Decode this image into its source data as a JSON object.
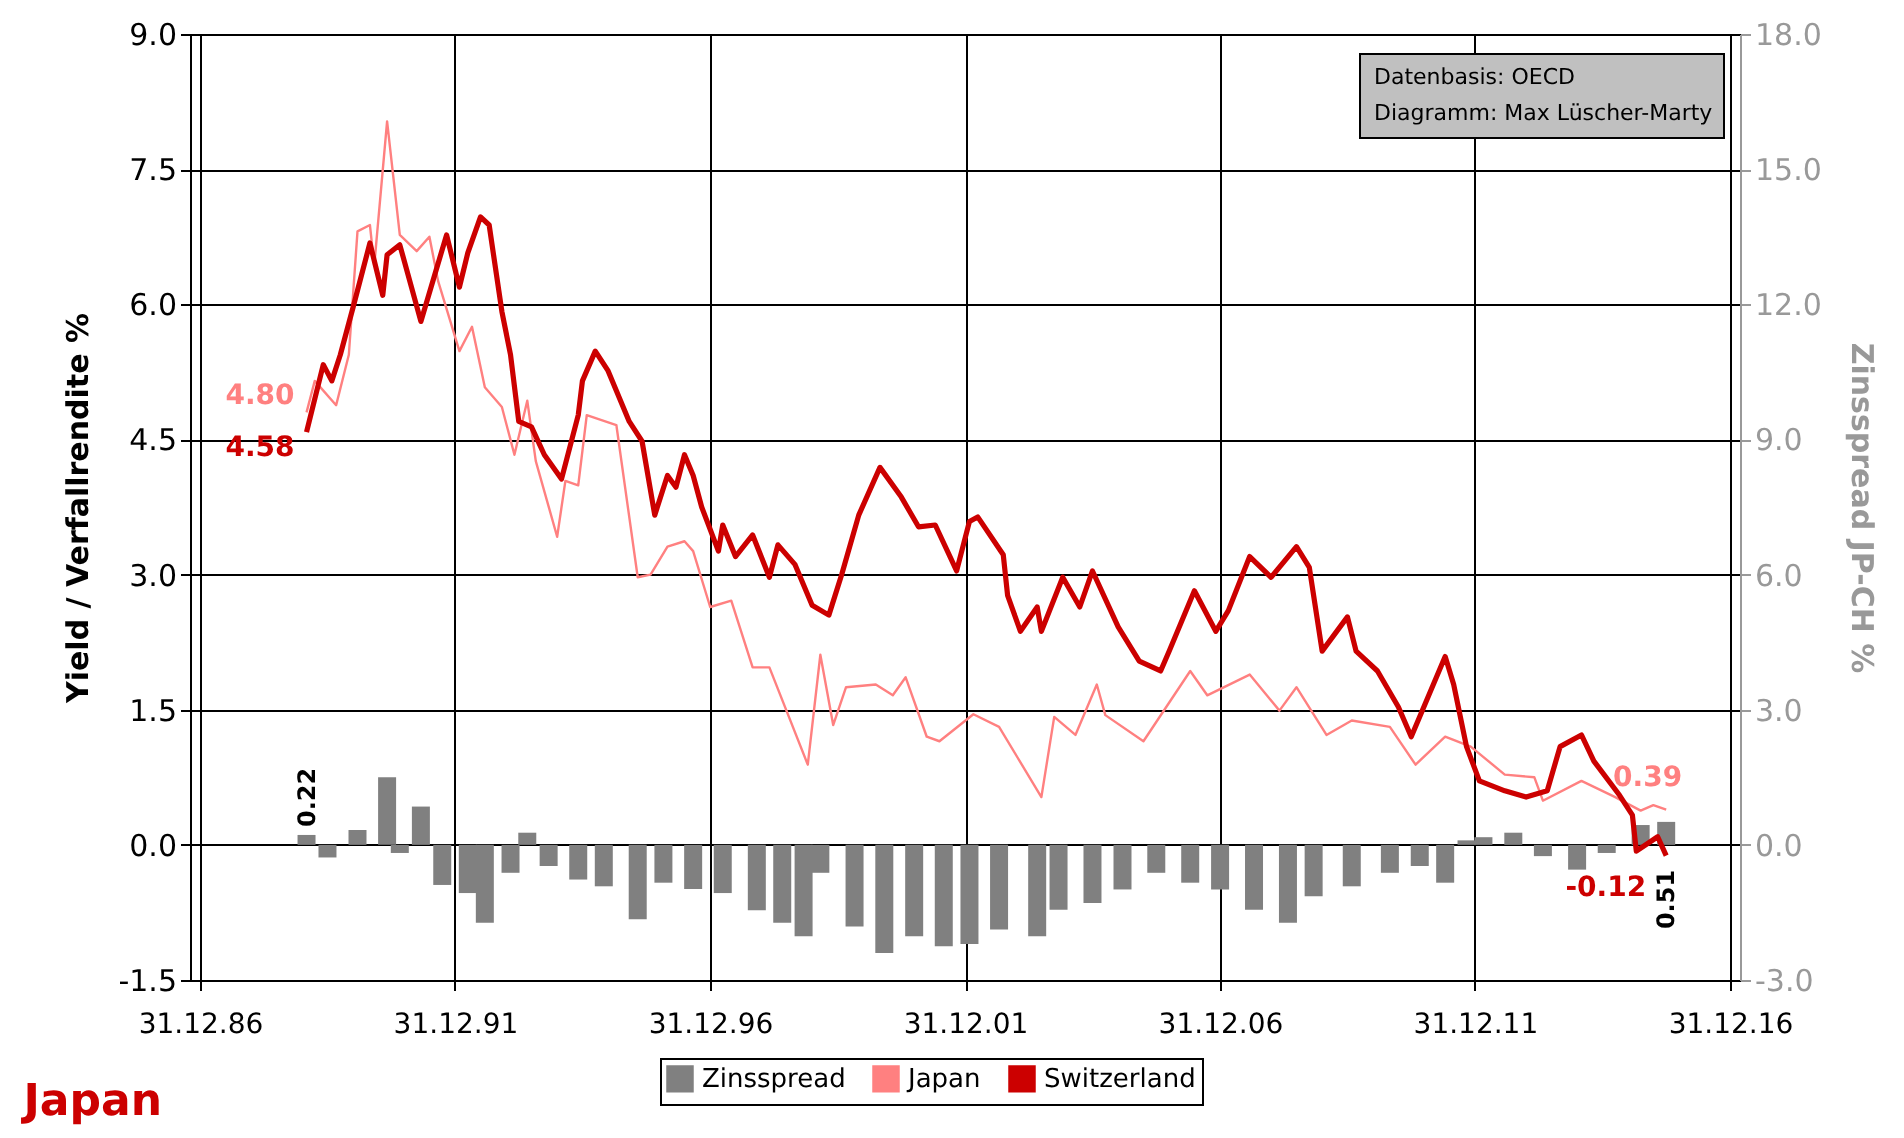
{
  "chart_data": {
    "type": "line",
    "title": "Japan",
    "ylabel": "Yield / Verfallrendite %",
    "y2label": "Zinsspread JP-CH %",
    "annotations": [
      "Datenbasis: OECD",
      "Diagramm: Max Lüscher-Marty"
    ],
    "xlim": [
      "1986-12-31",
      "2016-12-31"
    ],
    "xticks": [
      {
        "value": "1986-12-31",
        "label": "31.12.86"
      },
      {
        "value": "1991-12-31",
        "label": "31.12.91"
      },
      {
        "value": "1996-12-31",
        "label": "31.12.96"
      },
      {
        "value": "2001-12-31",
        "label": "31.12.01"
      },
      {
        "value": "2006-12-31",
        "label": "31.12.06"
      },
      {
        "value": "2011-12-31",
        "label": "31.12.11"
      },
      {
        "value": "2016-12-31",
        "label": "31.12.16"
      }
    ],
    "ylim": [
      -1.5,
      9.0
    ],
    "yticks": [
      {
        "value": -1.5,
        "label": "-1.5"
      },
      {
        "value": 0,
        "label": "0.0"
      },
      {
        "value": 1.5,
        "label": "1.5"
      },
      {
        "value": 3,
        "label": "3.0"
      },
      {
        "value": 4.5,
        "label": "4.5"
      },
      {
        "value": 6,
        "label": "6.0"
      },
      {
        "value": 7.5,
        "label": "7.5"
      },
      {
        "value": 9,
        "label": "9.0"
      }
    ],
    "y2lim": [
      -3.0,
      18.0
    ],
    "y2ticks": [
      {
        "value": -3,
        "label": "-3.0"
      },
      {
        "value": 0,
        "label": "0.0"
      },
      {
        "value": 3,
        "label": "3.0"
      },
      {
        "value": 6,
        "label": "6.0"
      },
      {
        "value": 9,
        "label": "9.0"
      },
      {
        "value": 12,
        "label": "12.0"
      },
      {
        "value": 15,
        "label": "15.0"
      },
      {
        "value": 18,
        "label": "18.0"
      }
    ],
    "grid": true,
    "legend": "bottom",
    "series": [
      {
        "name": "Zinsspread",
        "type": "bar",
        "axis": "y2",
        "color": "#808080",
        "x": [
          "1989-02",
          "1989-07",
          "1989-12",
          "1990-02",
          "1990-09",
          "1990-12",
          "1991-05",
          "1991-10",
          "1992-04",
          "1992-08",
          "1993-02",
          "1993-06",
          "1993-11",
          "1994-06",
          "1994-12",
          "1995-08",
          "1996-02",
          "1996-09",
          "1997-04",
          "1997-12",
          "1998-06",
          "1998-11",
          "1999-03",
          "1999-11",
          "2000-06",
          "2001-01",
          "2001-08",
          "2002-02",
          "2002-09",
          "2003-06",
          "2003-11",
          "2004-07",
          "2005-02",
          "2005-10",
          "2006-06",
          "2007-01",
          "2007-09",
          "2008-05",
          "2008-11",
          "2009-08",
          "2010-05",
          "2010-12",
          "2011-06",
          "2011-11",
          "2012-03",
          "2012-10",
          "2013-05",
          "2014-01",
          "2014-08",
          "2015-04",
          "2015-10"
        ],
        "values": [
          0.22,
          -0.28,
          null,
          0.33,
          1.5,
          -0.18,
          0.85,
          -0.89,
          -1.07,
          -1.73,
          -0.62,
          0.27,
          -0.47,
          -0.77,
          -0.92,
          -1.65,
          -0.84,
          -0.98,
          -1.07,
          -1.45,
          -1.73,
          -2.03,
          -0.62,
          -1.81,
          -2.4,
          -2.03,
          -2.25,
          -2.2,
          -1.88,
          -2.03,
          -1.44,
          -1.29,
          -0.99,
          -0.62,
          -0.84,
          -0.99,
          -1.44,
          -1.73,
          -1.14,
          -0.92,
          -0.62,
          -0.47,
          -0.84,
          0.1,
          0.17,
          0.27,
          -0.25,
          -0.55,
          -0.18,
          0.44,
          0.51
        ],
        "value_labels": [
          "0.22",
          null,
          null,
          null,
          null,
          null,
          null,
          null,
          null,
          null,
          null,
          null,
          null,
          null,
          null,
          null,
          null,
          null,
          null,
          null,
          null,
          null,
          null,
          null,
          null,
          null,
          null,
          null,
          null,
          null,
          null,
          null,
          null,
          null,
          null,
          null,
          null,
          null,
          null,
          null,
          null,
          null,
          null,
          null,
          null,
          null,
          null,
          null,
          null,
          null,
          "0.51"
        ]
      },
      {
        "name": "Japan",
        "color": "#ff8080",
        "x": [
          "1989-02",
          "1989-04",
          "1989-09",
          "1989-12",
          "1990-02",
          "1990-05",
          "1990-06",
          "1990-09",
          "1990-12",
          "1991-04",
          "1991-07",
          "1991-09",
          "1992-02",
          "1992-05",
          "1992-08",
          "1992-12",
          "1993-03",
          "1993-06",
          "1993-08",
          "1994-01",
          "1994-03",
          "1994-06",
          "1994-08",
          "1995-03",
          "1995-08",
          "1995-11",
          "1996-03",
          "1996-07",
          "1996-09",
          "1997-01",
          "1997-06",
          "1997-11",
          "1998-03",
          "1998-12",
          "1999-03",
          "1999-06",
          "1999-09",
          "2000-04",
          "2000-08",
          "2000-11",
          "2001-04",
          "2001-07",
          "2002-03",
          "2002-09",
          "2003-07",
          "2003-10",
          "2004-03",
          "2004-08",
          "2004-10",
          "2005-07",
          "2006-06",
          "2006-10",
          "2007-08",
          "2008-03",
          "2008-07",
          "2009-02",
          "2009-08",
          "2010-05",
          "2010-11",
          "2011-06",
          "2011-12",
          "2012-08",
          "2013-03",
          "2013-05",
          "2014-02",
          "2014-10",
          "2015-04",
          "2015-07",
          "2015-10"
        ],
        "values": [
          4.8,
          5.15,
          4.88,
          5.44,
          6.81,
          6.88,
          6.43,
          8.03,
          6.77,
          6.59,
          6.75,
          6.26,
          5.48,
          5.75,
          5.08,
          4.86,
          4.33,
          4.93,
          4.26,
          3.42,
          4.04,
          3.99,
          4.77,
          4.66,
          2.97,
          3.0,
          3.31,
          3.37,
          3.26,
          2.64,
          2.71,
          1.97,
          1.97,
          0.89,
          2.11,
          1.33,
          1.75,
          1.78,
          1.66,
          1.86,
          1.2,
          1.15,
          1.45,
          1.31,
          0.53,
          1.42,
          1.22,
          1.78,
          1.44,
          1.15,
          1.93,
          1.66,
          1.89,
          1.49,
          1.75,
          1.22,
          1.38,
          1.31,
          0.89,
          1.2,
          1.09,
          0.78,
          0.75,
          0.49,
          0.71,
          0.53,
          0.38,
          0.44,
          0.39
        ],
        "value_labels": [
          "4.80",
          null,
          null,
          null,
          null,
          null,
          null,
          null,
          null,
          null,
          null,
          null,
          null,
          null,
          null,
          null,
          null,
          null,
          null,
          null,
          null,
          null,
          null,
          null,
          null,
          null,
          null,
          null,
          null,
          null,
          null,
          null,
          null,
          null,
          null,
          null,
          null,
          null,
          null,
          null,
          null,
          null,
          null,
          null,
          null,
          null,
          null,
          null,
          null,
          null,
          null,
          null,
          null,
          null,
          null,
          null,
          null,
          null,
          null,
          null,
          null,
          null,
          null,
          null,
          null,
          null,
          null,
          null,
          "0.39"
        ]
      },
      {
        "name": "Switzerland",
        "color": "#cc0000",
        "x": [
          "1989-02",
          "1989-06",
          "1989-08",
          "1989-10",
          "1990-01",
          "1990-05",
          "1990-08",
          "1990-09",
          "1990-12",
          "1991-05",
          "1991-11",
          "1992-02",
          "1992-04",
          "1992-07",
          "1992-09",
          "1992-12",
          "1993-02",
          "1993-04",
          "1993-07",
          "1993-10",
          "1994-02",
          "1994-06",
          "1994-07",
          "1994-10",
          "1995-01",
          "1995-06",
          "1995-09",
          "1995-12",
          "1996-03",
          "1996-05",
          "1996-07",
          "1996-09",
          "1996-11",
          "1997-03",
          "1997-04",
          "1997-07",
          "1997-11",
          "1998-03",
          "1998-05",
          "1998-09",
          "1999-01",
          "1999-05",
          "1999-08",
          "1999-12",
          "2000-05",
          "2000-10",
          "2001-02",
          "2001-06",
          "2001-11",
          "2002-02",
          "2002-04",
          "2002-10",
          "2002-11",
          "2003-02",
          "2003-06",
          "2003-07",
          "2003-12",
          "2004-04",
          "2004-07",
          "2005-01",
          "2005-06",
          "2005-11",
          "2006-01",
          "2006-07",
          "2006-12",
          "2007-03",
          "2007-08",
          "2008-01",
          "2008-07",
          "2008-10",
          "2009-01",
          "2009-07",
          "2009-09",
          "2010-02",
          "2010-07",
          "2010-10",
          "2011-06",
          "2011-08",
          "2011-11",
          "2012-02",
          "2012-08",
          "2013-01",
          "2013-06",
          "2013-09",
          "2014-02",
          "2014-05",
          "2014-11",
          "2015-02",
          "2015-03",
          "2015-08",
          "2015-10"
        ],
        "values": [
          4.58,
          5.33,
          5.15,
          5.44,
          5.97,
          6.68,
          6.1,
          6.55,
          6.66,
          5.81,
          6.77,
          6.19,
          6.57,
          6.97,
          6.88,
          5.92,
          5.44,
          4.7,
          4.64,
          4.33,
          4.06,
          4.77,
          5.15,
          5.48,
          5.26,
          4.7,
          4.48,
          3.66,
          4.1,
          3.97,
          4.33,
          4.1,
          3.75,
          3.26,
          3.55,
          3.2,
          3.44,
          2.97,
          3.33,
          3.11,
          2.66,
          2.55,
          3.0,
          3.66,
          4.19,
          3.86,
          3.53,
          3.55,
          3.04,
          3.59,
          3.64,
          3.22,
          2.77,
          2.37,
          2.64,
          2.37,
          2.97,
          2.64,
          3.04,
          2.42,
          2.04,
          1.93,
          2.15,
          2.82,
          2.37,
          2.6,
          3.2,
          2.97,
          3.31,
          3.08,
          2.15,
          2.53,
          2.15,
          1.93,
          1.53,
          1.2,
          2.09,
          1.78,
          1.09,
          0.71,
          0.6,
          0.53,
          0.6,
          1.09,
          1.22,
          0.93,
          0.55,
          0.33,
          -0.07,
          0.09,
          -0.12
        ],
        "value_labels": [
          "4.58",
          null,
          null,
          null,
          null,
          null,
          null,
          null,
          null,
          null,
          null,
          null,
          null,
          null,
          null,
          null,
          null,
          null,
          null,
          null,
          null,
          null,
          null,
          null,
          null,
          null,
          null,
          null,
          null,
          null,
          null,
          null,
          null,
          null,
          null,
          null,
          null,
          null,
          null,
          null,
          null,
          null,
          null,
          null,
          null,
          null,
          null,
          null,
          null,
          null,
          null,
          null,
          null,
          null,
          null,
          null,
          null,
          null,
          null,
          null,
          null,
          null,
          null,
          null,
          null,
          null,
          null,
          null,
          null,
          null,
          null,
          null,
          null,
          null,
          null,
          null,
          null,
          null,
          null,
          null,
          null,
          null,
          null,
          null,
          null,
          null,
          null,
          null,
          null,
          null,
          "-0.12"
        ]
      }
    ]
  }
}
